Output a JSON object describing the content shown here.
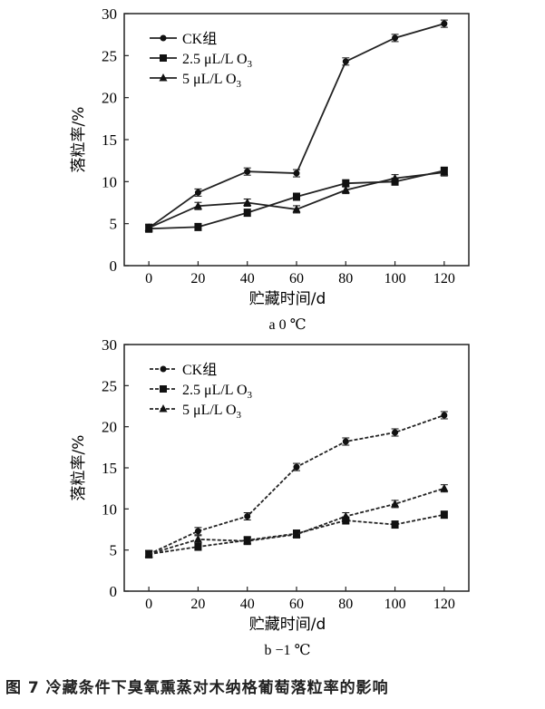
{
  "caption": "图 7  冷藏条件下臭氧熏蒸对木纳格葡萄落粒率的影响",
  "chart_data": [
    {
      "type": "line",
      "subtitle": "a 0 ℃",
      "xlabel": "贮藏时间/d",
      "ylabel": "落粒率/%",
      "x": [
        0,
        20,
        40,
        60,
        80,
        100,
        120
      ],
      "xlim": [
        -10,
        130
      ],
      "ylim": [
        0,
        30
      ],
      "yticks": [
        0,
        5,
        10,
        15,
        20,
        25,
        30
      ],
      "line_style": "solid",
      "legend_position": "top-left",
      "series": [
        {
          "name": "CK组",
          "marker": "circle",
          "values": [
            4.5,
            8.7,
            11.2,
            11.0,
            24.3,
            27.1,
            28.8
          ]
        },
        {
          "name": "2.5 μL/L O3",
          "marker": "square",
          "values": [
            4.4,
            4.6,
            6.3,
            8.2,
            9.8,
            10.0,
            11.3
          ]
        },
        {
          "name": "5 μL/L O3",
          "marker": "triangle",
          "values": [
            4.5,
            7.1,
            7.5,
            6.7,
            9.0,
            10.4,
            11.1
          ]
        }
      ]
    },
    {
      "type": "line",
      "subtitle": "b −1 ℃",
      "xlabel": "贮藏时间/d",
      "ylabel": "落粒率/%",
      "x": [
        0,
        20,
        40,
        60,
        80,
        100,
        120
      ],
      "xlim": [
        -10,
        130
      ],
      "ylim": [
        0,
        30
      ],
      "yticks": [
        0,
        5,
        10,
        15,
        20,
        25,
        30
      ],
      "line_style": "dashed",
      "legend_position": "top-left",
      "series": [
        {
          "name": "CK组",
          "marker": "circle",
          "values": [
            4.5,
            7.3,
            9.1,
            15.1,
            18.2,
            19.3,
            21.4
          ]
        },
        {
          "name": "2.5 μL/L O3",
          "marker": "square",
          "values": [
            4.5,
            5.4,
            6.2,
            7.0,
            8.6,
            8.1,
            9.3
          ]
        },
        {
          "name": "5 μL/L O3",
          "marker": "triangle",
          "values": [
            4.5,
            6.3,
            6.1,
            6.9,
            9.1,
            10.6,
            12.5
          ]
        }
      ]
    }
  ]
}
